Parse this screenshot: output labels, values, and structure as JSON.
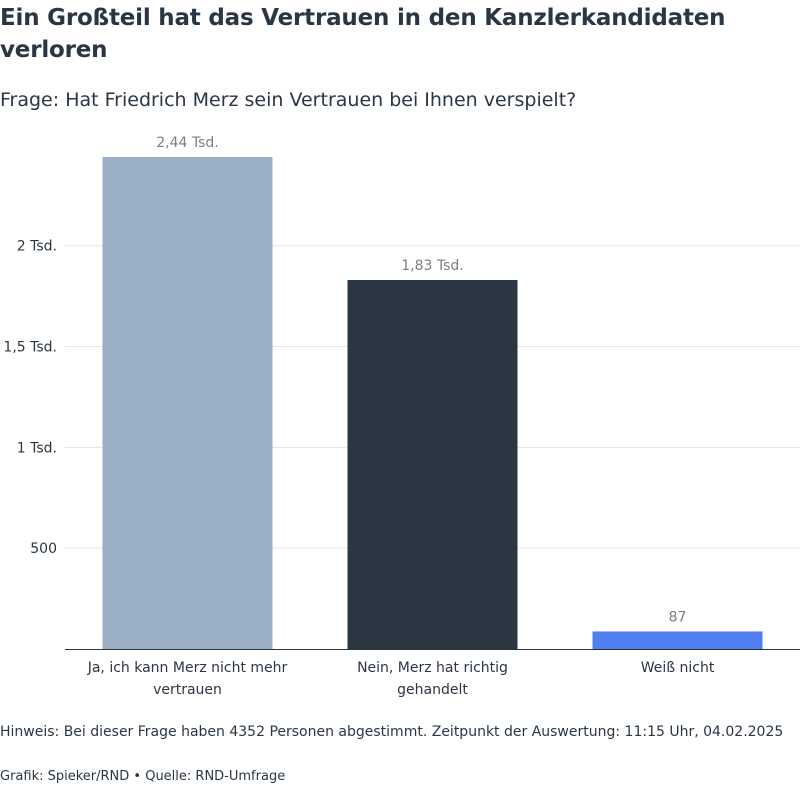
{
  "header": {
    "title": "Ein Großteil hat das Vertrauen in den Kanzlerkandidaten verloren",
    "subtitle": "Frage: Hat Friedrich Merz sein Vertrauen bei Ihnen verspielt?"
  },
  "chart_data": {
    "type": "bar",
    "categories": [
      "Ja, ich kann Merz nicht mehr vertrauen",
      "Nein, Merz hat richtig gehandelt",
      "Weiß nicht"
    ],
    "category_lines": [
      [
        "Ja, ich kann Merz nicht mehr",
        "vertrauen"
      ],
      [
        "Nein, Merz hat richtig",
        "gehandelt"
      ],
      [
        "Weiß nicht"
      ]
    ],
    "values": [
      2440,
      1830,
      87
    ],
    "value_labels": [
      "2,44 Tsd.",
      "1,83 Tsd.",
      "87"
    ],
    "colors": [
      "#9aafc4",
      "#2b3643",
      "#4f7ff0"
    ],
    "ylim": [
      0,
      2440
    ],
    "yticks": [
      500,
      1000,
      1500,
      2000
    ],
    "ytick_labels": [
      "500",
      "1 Tsd.",
      "1,5 Tsd.",
      "2 Tsd."
    ],
    "grid": true,
    "gridColor": "#e3e6ea",
    "axisColor": "#2b3643"
  },
  "footer": {
    "note": "Hinweis: Bei dieser Frage haben 4352 Personen abgestimmt. Zeitpunkt der Auswertung: 11:15 Uhr, 04.02.2025",
    "credits": "Grafik: Spieker/RND • Quelle: RND-Umfrage"
  }
}
